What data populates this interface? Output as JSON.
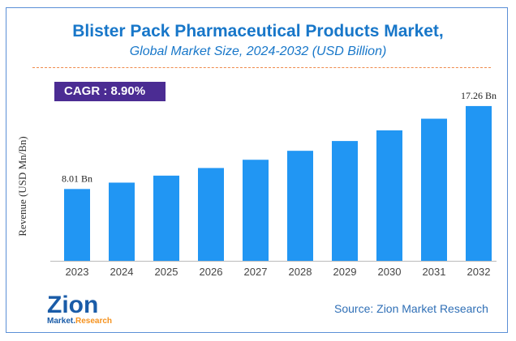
{
  "chart_data": {
    "type": "bar",
    "title": "Blister Pack Pharmaceutical Products Market,",
    "subtitle": "Global Market Size, 2024-2032 (USD Billion)",
    "ylabel": "Revenue (USD Mn/Bn)",
    "xlabel": "",
    "categories": [
      "2023",
      "2024",
      "2025",
      "2026",
      "2027",
      "2028",
      "2029",
      "2030",
      "2031",
      "2032"
    ],
    "values": [
      8.01,
      8.72,
      9.5,
      10.35,
      11.27,
      12.27,
      13.36,
      14.55,
      15.85,
      17.26
    ],
    "data_labels": {
      "0": "8.01 Bn",
      "9": "17.26 Bn"
    },
    "ylim": [
      0,
      18
    ],
    "grid": false,
    "bar_color": "#2196f3"
  },
  "cagr": "CAGR :  8.90%",
  "source": "Source: Zion Market Research",
  "logo": {
    "line1": "Zion",
    "line2": "Market.Research"
  }
}
